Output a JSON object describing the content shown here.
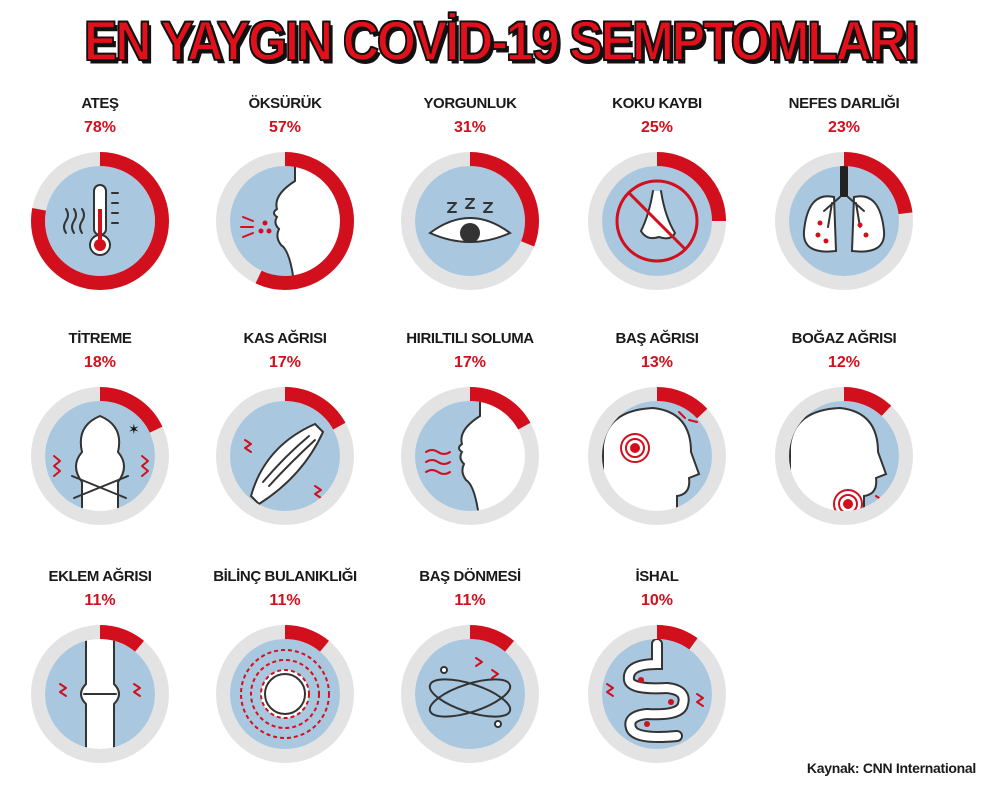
{
  "page": {
    "title": "EN YAYGIN COVİD-19 SEMPTOMLARI",
    "source": "Kaynak: CNN International"
  },
  "colors": {
    "accent": "#d20f1c",
    "ring_track": "#e3e3e3",
    "disc": "#a9c7df",
    "line": "#333333"
  },
  "chart_data": {
    "type": "pie",
    "title": "EN YAYGIN COVİD-19 SEMPTOMLARI",
    "source": "Kaynak: CNN International",
    "unit": "%",
    "categories": [
      "ATEŞ",
      "ÖKSÜRÜK",
      "YORGUNLUK",
      "KOKU KAYBI",
      "NEFES DARLIĞI",
      "TİTREME",
      "KAS AĞRISI",
      "HIRILTILI SOLUMA",
      "BAŞ AĞRISI",
      "BOĞAZ AĞRISI",
      "EKLEM AĞRISI",
      "BİLİNÇ BULANIKLIĞI",
      "BAŞ DÖNMESİ",
      "İSHAL"
    ],
    "values": [
      78,
      57,
      31,
      25,
      23,
      18,
      17,
      17,
      13,
      12,
      11,
      11,
      11,
      10
    ],
    "labels": [
      "78%",
      "57%",
      "31%",
      "25%",
      "23%",
      "18%",
      "17%",
      "17%",
      "13%",
      "12%",
      "11%",
      "11%",
      "11%",
      "10%"
    ],
    "icons": [
      "thermometer-icon",
      "coughing-face-icon",
      "sleepy-eye-icon",
      "crossed-nose-icon",
      "lungs-icon",
      "shivering-person-icon",
      "muscle-icon",
      "wheezing-face-icon",
      "headache-icon",
      "sore-throat-icon",
      "knee-joint-icon",
      "confusion-swirl-icon",
      "dizziness-orbit-icon",
      "intestine-icon"
    ],
    "legend": "none",
    "grid": false
  }
}
